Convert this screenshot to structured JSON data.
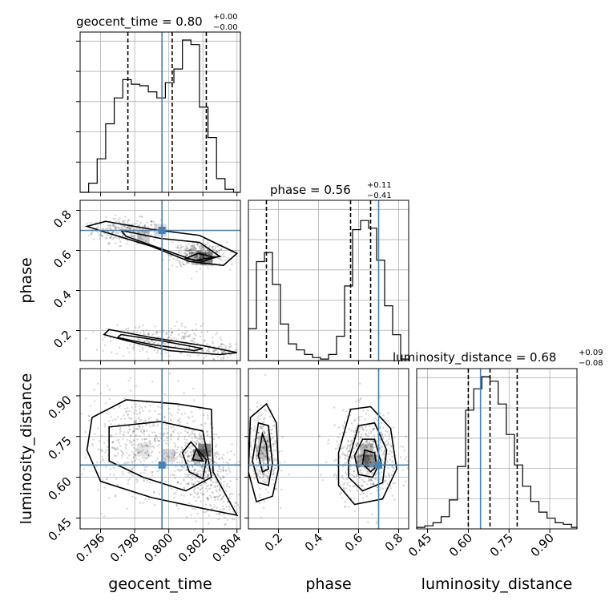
{
  "figure": {
    "titles": {
      "geocent_time": {
        "main": "geocent_time = 0.80",
        "sup": "+0.00",
        "sub": "−0.00"
      },
      "phase": {
        "main": "phase = 0.56",
        "sup": "+0.11",
        "sub": "−0.41"
      },
      "luminosity_distance": {
        "main": "luminosity_distance = 0.68",
        "sup": "+0.09",
        "sub": "−0.08"
      }
    },
    "axis_labels": {
      "geocent_time": "geocent_time",
      "phase": "phase",
      "luminosity_distance": "luminosity_distance"
    },
    "colors": {
      "truth": "#4682b4",
      "lines": "#000000",
      "grid": "#b0b0b0"
    }
  },
  "chart_data": {
    "type": "corner",
    "parameters": [
      "geocent_time",
      "phase",
      "luminosity_distance"
    ],
    "ranges": {
      "geocent_time": [
        0.7948,
        0.8042
      ],
      "phase": [
        0.05,
        0.85
      ],
      "luminosity_distance": [
        0.41,
        1.0
      ]
    },
    "ticks": {
      "geocent_time": [
        0.796,
        0.798,
        0.8,
        0.802,
        0.804
      ],
      "phase": [
        0.2,
        0.4,
        0.6,
        0.8
      ],
      "luminosity_distance": [
        0.45,
        0.6,
        0.75,
        0.9
      ]
    },
    "tick_labels": {
      "geocent_time": [
        "0.796",
        "0.798",
        "0.800",
        "0.802",
        "0.804"
      ],
      "phase": [
        "0.2",
        "0.4",
        "0.6",
        "0.8"
      ],
      "luminosity_distance": [
        "0.45",
        "0.60",
        "0.75",
        "0.90"
      ]
    },
    "truths": {
      "geocent_time": 0.7996,
      "phase": 0.7,
      "luminosity_distance": 0.645
    },
    "quantiles": {
      "geocent_time": [
        0.7976,
        0.8002,
        0.8022
      ],
      "phase": [
        0.14,
        0.56,
        0.66
      ],
      "luminosity_distance": [
        0.6,
        0.68,
        0.78
      ]
    },
    "histograms": {
      "geocent_time": {
        "edges": [
          0.7948,
          0.7953,
          0.7958,
          0.7963,
          0.7968,
          0.7973,
          0.7978,
          0.7983,
          0.7988,
          0.7993,
          0.7998,
          0.8003,
          0.8008,
          0.8013,
          0.8018,
          0.8023,
          0.8028,
          0.8033,
          0.8038,
          0.8043
        ],
        "counts": [
          0,
          0.06,
          0.22,
          0.45,
          0.62,
          0.74,
          0.71,
          0.7,
          0.66,
          0.62,
          0.72,
          0.81,
          1.0,
          0.97,
          0.56,
          0.36,
          0.09,
          0.02,
          0
        ]
      },
      "phase": {
        "edges": [
          0.05,
          0.09,
          0.13,
          0.17,
          0.21,
          0.25,
          0.29,
          0.33,
          0.37,
          0.41,
          0.45,
          0.49,
          0.53,
          0.57,
          0.61,
          0.65,
          0.69,
          0.73,
          0.77,
          0.81,
          0.85
        ],
        "counts": [
          0.21,
          0.65,
          0.71,
          0.5,
          0.24,
          0.11,
          0.07,
          0.04,
          0.02,
          0.01,
          0.04,
          0.16,
          0.49,
          0.86,
          0.92,
          0.87,
          0.66,
          0.36,
          0.17,
          0.01
        ]
      },
      "luminosity_distance": {
        "edges": [
          0.41,
          0.44,
          0.47,
          0.5,
          0.53,
          0.56,
          0.59,
          0.62,
          0.65,
          0.68,
          0.71,
          0.74,
          0.77,
          0.8,
          0.83,
          0.86,
          0.89,
          0.92,
          0.95,
          0.98,
          1.01
        ],
        "counts": [
          0.01,
          0.02,
          0.04,
          0.08,
          0.19,
          0.41,
          0.78,
          0.92,
          1.0,
          0.97,
          0.82,
          0.62,
          0.42,
          0.28,
          0.18,
          0.11,
          0.07,
          0.04,
          0.03,
          0.01
        ]
      }
    },
    "contours": {
      "geocent_time__phase": [
        [
          [
            0.7963,
            0.745
          ],
          [
            0.799,
            0.705
          ],
          [
            0.8018,
            0.675
          ],
          [
            0.804,
            0.585
          ],
          [
            0.8032,
            0.525
          ],
          [
            0.8012,
            0.545
          ],
          [
            0.799,
            0.62
          ],
          [
            0.7963,
            0.69
          ],
          [
            0.7952,
            0.72
          ]
        ],
        [
          [
            0.7972,
            0.7
          ],
          [
            0.7995,
            0.66
          ],
          [
            0.8018,
            0.64
          ],
          [
            0.803,
            0.57
          ],
          [
            0.8015,
            0.55
          ],
          [
            0.7995,
            0.61
          ],
          [
            0.7975,
            0.67
          ]
        ],
        [
          [
            0.8017,
            0.585
          ],
          [
            0.8027,
            0.565
          ],
          [
            0.802,
            0.545
          ],
          [
            0.801,
            0.56
          ]
        ],
        [
          [
            0.7965,
            0.205
          ],
          [
            0.799,
            0.165
          ],
          [
            0.802,
            0.125
          ],
          [
            0.804,
            0.09
          ],
          [
            0.803,
            0.08
          ],
          [
            0.8,
            0.1
          ],
          [
            0.7975,
            0.15
          ],
          [
            0.7962,
            0.18
          ]
        ],
        [
          [
            0.7972,
            0.18
          ],
          [
            0.7995,
            0.15
          ],
          [
            0.802,
            0.11
          ],
          [
            0.8015,
            0.1
          ],
          [
            0.799,
            0.13
          ],
          [
            0.797,
            0.165
          ]
        ]
      ],
      "geocent_time__luminosity_distance": [
        [
          [
            0.7955,
            0.82
          ],
          [
            0.7975,
            0.885
          ],
          [
            0.8005,
            0.87
          ],
          [
            0.8025,
            0.85
          ],
          [
            0.8026,
            0.62
          ],
          [
            0.804,
            0.46
          ],
          [
            0.802,
            0.485
          ],
          [
            0.799,
            0.525
          ],
          [
            0.796,
            0.585
          ],
          [
            0.7952,
            0.7
          ]
        ],
        [
          [
            0.7965,
            0.785
          ],
          [
            0.7995,
            0.805
          ],
          [
            0.802,
            0.77
          ],
          [
            0.8025,
            0.6
          ],
          [
            0.801,
            0.55
          ],
          [
            0.7985,
            0.6
          ],
          [
            0.7965,
            0.66
          ]
        ],
        [
          [
            0.8013,
            0.73
          ],
          [
            0.8022,
            0.665
          ],
          [
            0.802,
            0.595
          ],
          [
            0.8012,
            0.62
          ],
          [
            0.8008,
            0.69
          ]
        ],
        [
          [
            0.8016,
            0.705
          ],
          [
            0.802,
            0.66
          ],
          [
            0.8014,
            0.665
          ]
        ]
      ],
      "phase__luminosity_distance": [
        [
          [
            0.06,
            0.82
          ],
          [
            0.14,
            0.87
          ],
          [
            0.19,
            0.8
          ],
          [
            0.2,
            0.63
          ],
          [
            0.17,
            0.53
          ],
          [
            0.09,
            0.51
          ],
          [
            0.05,
            0.62
          ]
        ],
        [
          [
            0.1,
            0.8
          ],
          [
            0.15,
            0.79
          ],
          [
            0.17,
            0.65
          ],
          [
            0.15,
            0.57
          ],
          [
            0.1,
            0.58
          ],
          [
            0.07,
            0.66
          ]
        ],
        [
          [
            0.12,
            0.76
          ],
          [
            0.14,
            0.72
          ],
          [
            0.15,
            0.63
          ],
          [
            0.12,
            0.62
          ],
          [
            0.1,
            0.68
          ]
        ],
        [
          [
            0.5,
            0.69
          ],
          [
            0.56,
            0.85
          ],
          [
            0.66,
            0.86
          ],
          [
            0.76,
            0.78
          ],
          [
            0.79,
            0.63
          ],
          [
            0.72,
            0.52
          ],
          [
            0.58,
            0.5
          ],
          [
            0.5,
            0.57
          ]
        ],
        [
          [
            0.55,
            0.66
          ],
          [
            0.6,
            0.79
          ],
          [
            0.68,
            0.8
          ],
          [
            0.74,
            0.7
          ],
          [
            0.72,
            0.58
          ],
          [
            0.62,
            0.55
          ],
          [
            0.55,
            0.6
          ]
        ],
        [
          [
            0.58,
            0.68
          ],
          [
            0.62,
            0.74
          ],
          [
            0.68,
            0.74
          ],
          [
            0.71,
            0.66
          ],
          [
            0.67,
            0.6
          ],
          [
            0.6,
            0.61
          ]
        ],
        [
          [
            0.63,
            0.7
          ],
          [
            0.68,
            0.69
          ],
          [
            0.69,
            0.64
          ],
          [
            0.66,
            0.62
          ],
          [
            0.62,
            0.65
          ]
        ]
      ]
    },
    "grid": true
  }
}
